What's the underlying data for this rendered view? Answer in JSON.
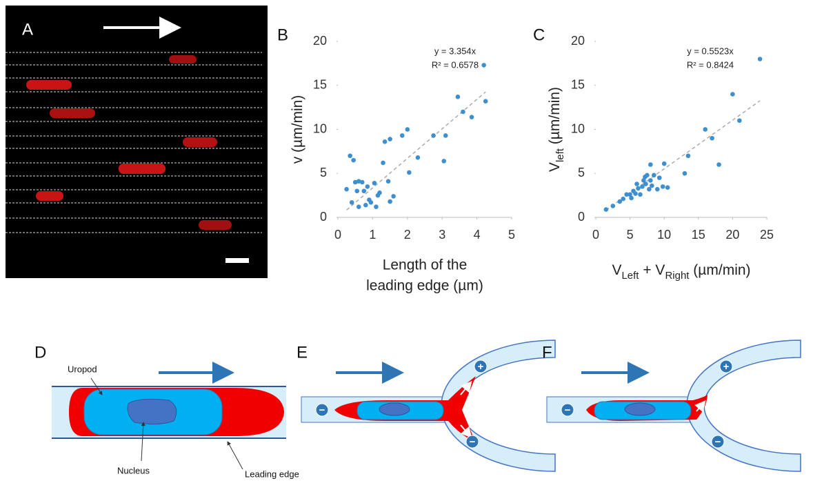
{
  "panel_labels": [
    "A",
    "B",
    "C",
    "D",
    "E",
    "F"
  ],
  "chart_data": [
    {
      "type": "scatter",
      "x": [
        0.25,
        0.35,
        0.4,
        0.45,
        0.5,
        0.55,
        0.6,
        0.6,
        0.7,
        0.75,
        0.8,
        0.85,
        0.9,
        0.95,
        1.05,
        1.1,
        1.15,
        1.2,
        1.3,
        1.35,
        1.45,
        1.5,
        1.5,
        1.6,
        1.85,
        2.0,
        2.05,
        2.3,
        2.75,
        3.05,
        3.1,
        3.45,
        3.6,
        3.85,
        4.2,
        4.25
      ],
      "series": [
        {
          "color": "#3d8fcf",
          "values": [
            3.2,
            7.0,
            1.7,
            6.5,
            4.0,
            3.0,
            4.1,
            1.2,
            4.0,
            3.0,
            1.4,
            3.5,
            2.0,
            1.7,
            3.9,
            1.2,
            2.5,
            2.8,
            6.2,
            8.6,
            4.1,
            1.8,
            8.9,
            2.4,
            9.3,
            10.0,
            5.1,
            6.8,
            9.3,
            6.4,
            9.3,
            13.7,
            12.0,
            11.4,
            17.3,
            13.2
          ]
        }
      ],
      "xlim": [
        0,
        5
      ],
      "xticks": [
        0,
        1,
        2,
        3,
        4,
        5
      ],
      "ylim": [
        0,
        20
      ],
      "yticks": [
        0,
        5,
        10,
        15,
        20
      ],
      "ylabel": [
        {
          "text": "v (µm/min)"
        }
      ],
      "xlabel": [
        "Length of the",
        "leading edge (µm)"
      ],
      "trendline": {
        "slope": 3.354,
        "label": "y = 3.354x",
        "r2_label": "R² = 0.6578"
      }
    },
    {
      "type": "scatter",
      "x": [
        1.5,
        2.5,
        3.5,
        4,
        4.5,
        5,
        5.2,
        5.5,
        5.8,
        6,
        6.2,
        6.5,
        6.8,
        7,
        7.2,
        7.3,
        7.5,
        7.8,
        8,
        8,
        8.2,
        8.5,
        9,
        9.3,
        9.8,
        10,
        10.5,
        13,
        13.5,
        16,
        17,
        18,
        20,
        21,
        24
      ],
      "series": [
        {
          "color": "#3d8fcf",
          "values": [
            0.9,
            1.3,
            1.8,
            2.1,
            2.6,
            2.6,
            2.2,
            3.0,
            2.7,
            3.8,
            3.3,
            2.6,
            3.5,
            4.2,
            4.6,
            3.8,
            4.8,
            3.2,
            6.0,
            4.2,
            3.6,
            4.8,
            3.2,
            4.5,
            3.5,
            6.1,
            3.4,
            5.0,
            7.0,
            10.0,
            9.0,
            6.0,
            14.0,
            11.0,
            18.0
          ]
        }
      ],
      "xlim": [
        0,
        25
      ],
      "xticks": [
        0,
        5,
        10,
        15,
        20,
        25
      ],
      "ylim": [
        0,
        20
      ],
      "yticks": [
        0,
        5,
        10,
        15,
        20
      ],
      "ylabel": [
        {
          "text": "V"
        },
        {
          "text": "left",
          "sub": true
        },
        {
          "text": "  (µm/min)"
        }
      ],
      "xlabel": [
        [
          {
            "text": "V"
          },
          {
            "text": "Left",
            "sub": true
          },
          {
            "text": " + V"
          },
          {
            "text": "Right",
            "sub": true
          },
          {
            "text": "  (µm/min)"
          }
        ]
      ],
      "trendline": {
        "slope": 0.5523,
        "label": "y = 0.5523x",
        "r2_label": "R² = 0.8424"
      }
    }
  ],
  "diagram_d": {
    "uropod": "Uropod",
    "nucleus": "Nucleus",
    "leading_edge": "Leading edge"
  },
  "diagram_e_signs": [
    "−",
    "+",
    "−"
  ],
  "diagram_f_signs": [
    "−",
    "+",
    "−"
  ]
}
